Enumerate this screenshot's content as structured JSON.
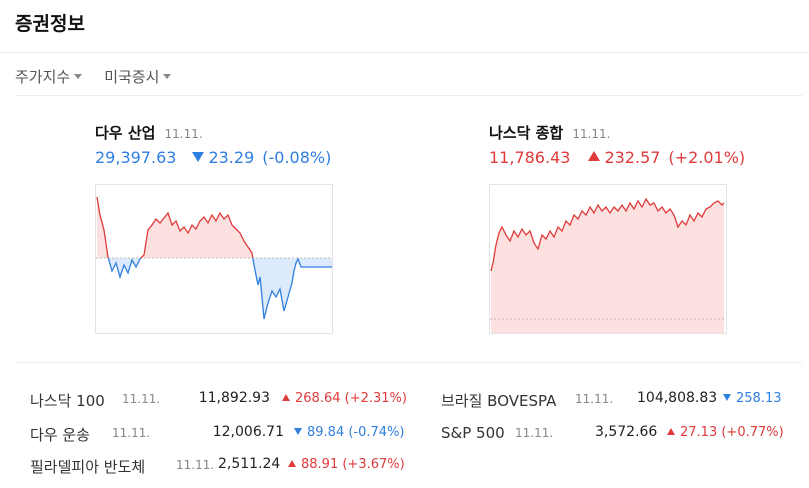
{
  "header": {
    "title": "증권정보"
  },
  "tabs": [
    {
      "label": "주가지수"
    },
    {
      "label": "미국증시"
    }
  ],
  "cards": [
    {
      "name": "다우 산업",
      "date": "11.11.",
      "price": "29,397.63",
      "change": "23.29",
      "pct": "(-0.08%)",
      "direction": "down",
      "color": "#2f7fe0"
    },
    {
      "name": "나스닥 종합",
      "date": "11.11.",
      "price": "11,786.43",
      "change": "232.57",
      "pct": "(+2.01%)",
      "direction": "up",
      "color": "#e03a3a"
    }
  ],
  "rows": [
    {
      "name": "나스닥 100",
      "date": "11.11.",
      "price": "11,892.93",
      "change": "268.64",
      "pct": "(+2.31%)",
      "direction": "up"
    },
    {
      "name": "다우 운송",
      "date": "11.11.",
      "price": "12,006.71",
      "change": "89.84",
      "pct": "(-0.74%)",
      "direction": "down"
    },
    {
      "name": "필라델피아 반도체",
      "date": "11.11.",
      "price": "2,511.24",
      "change": "88.91",
      "pct": "(+3.67%)",
      "direction": "up"
    },
    {
      "name": "브라질 BOVESPA",
      "date": "11.11.",
      "price": "104,808.83",
      "change": "258.13",
      "pct": "",
      "direction": "down"
    },
    {
      "name": "S&P 500",
      "date": "11.11.",
      "price": "3,572.66",
      "change": "27.13",
      "pct": "(+0.77%)",
      "direction": "up"
    }
  ],
  "colors": {
    "up": "#e03a3a",
    "down": "#2f7fe0",
    "up_fill": "#fde1e1",
    "down_fill": "#dceafb"
  }
}
